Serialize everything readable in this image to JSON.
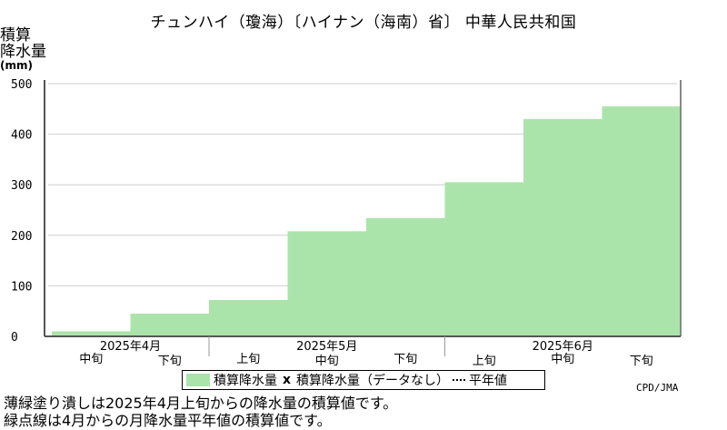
{
  "chart_data": {
    "type": "area",
    "title": "チュンハイ（瓊海）〔ハイナン（海南）省〕 中華人民共和国",
    "ylabel": [
      "積算",
      "降水量"
    ],
    "yunit": "(mm)",
    "ylim": [
      0,
      500
    ],
    "yticks": [
      0,
      100,
      200,
      300,
      400,
      500
    ],
    "grid": true,
    "periods": [
      "中旬",
      "下旬",
      "上旬",
      "中旬",
      "下旬",
      "上旬",
      "中旬",
      "下旬"
    ],
    "months": [
      {
        "label": "2025年4月",
        "start": 0
      },
      {
        "label": "2025年5月",
        "start": 2
      },
      {
        "label": "2025年6月",
        "start": 5
      }
    ],
    "series": [
      {
        "name": "積算降水量",
        "color": "#abe4ab",
        "values": [
          10,
          45,
          72,
          208,
          234,
          305,
          430,
          455
        ]
      }
    ],
    "legend": {
      "items": [
        "積算降水量",
        "積算降水量（データなし）",
        "平年値"
      ],
      "marker": "x",
      "placement": "bottom-center"
    }
  },
  "credit": "CPD/JMA",
  "notes": [
    "薄緑塗り潰しは2025年4月上旬からの降水量の積算値です。",
    "緑点線は4月からの月降水量平年値の積算値です。"
  ]
}
